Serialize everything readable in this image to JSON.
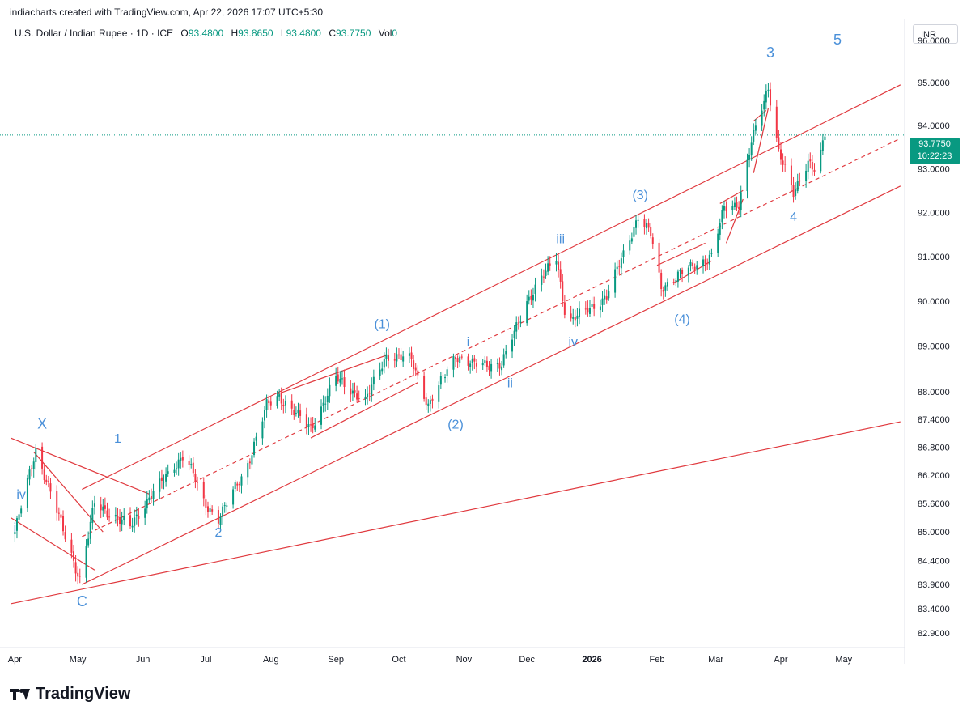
{
  "header": {
    "published": "indiacharts created with TradingView.com, Apr 22, 2026 17:07 UTC+5:30"
  },
  "legend": {
    "symbol": "U.S. Dollar / Indian Rupee · 1D · ICE",
    "open_label": "O",
    "open": "93.4800",
    "high_label": "H",
    "high": "93.8650",
    "low_label": "L",
    "low": "93.4800",
    "close_label": "C",
    "close": "93.7750",
    "vol_label": "Vol",
    "vol": "0"
  },
  "price_axis": {
    "currency": "INR"
  },
  "last_price": {
    "value": "93.7750",
    "countdown": "10:22:23"
  },
  "brand": {
    "name": "TradingView",
    "logo": "tradingview-logo-icon"
  },
  "colors": {
    "up": "#089981",
    "down": "#f23645",
    "annotation": "#4a90d9",
    "trendline": "#e0393e"
  },
  "chart_data": {
    "type": "candlestick",
    "title": "",
    "scale": "log",
    "ylim": [
      82.6,
      96.5
    ],
    "y_ticks": [
      "96.0000",
      "95.0000",
      "94.0000",
      "93.0000",
      "92.0000",
      "91.0000",
      "90.0000",
      "89.0000",
      "88.0000",
      "87.4000",
      "86.8000",
      "86.2000",
      "85.6000",
      "85.0000",
      "84.4000",
      "83.9000",
      "83.4000",
      "82.9000"
    ],
    "x_ticks": [
      "Apr",
      "May",
      "Jun",
      "Jul",
      "Aug",
      "Sep",
      "Oct",
      "Nov",
      "Dec",
      "2026",
      "Feb",
      "Mar",
      "Apr",
      "May"
    ],
    "x_ticks_bold": [
      "2026"
    ],
    "last_close": 93.775,
    "path": [
      [
        "2025-04-01",
        85.0
      ],
      [
        "2025-04-11",
        86.75
      ],
      [
        "2025-05-02",
        84.0
      ],
      [
        "2025-05-09",
        85.6
      ],
      [
        "2025-05-16",
        85.4
      ],
      [
        "2025-05-26",
        85.1
      ],
      [
        "2025-06-05",
        85.8
      ],
      [
        "2025-06-13",
        86.2
      ],
      [
        "2025-06-21",
        86.7
      ],
      [
        "2025-06-30",
        85.6
      ],
      [
        "2025-07-07",
        85.3
      ],
      [
        "2025-07-20",
        86.3
      ],
      [
        "2025-07-30",
        87.7
      ],
      [
        "2025-08-05",
        87.9
      ],
      [
        "2025-08-20",
        87.2
      ],
      [
        "2025-09-01",
        88.3
      ],
      [
        "2025-09-15",
        87.8
      ],
      [
        "2025-09-25",
        88.8
      ],
      [
        "2025-10-07",
        88.7
      ],
      [
        "2025-10-15",
        87.7
      ],
      [
        "2025-10-28",
        88.8
      ],
      [
        "2025-11-05",
        88.6
      ],
      [
        "2025-11-19",
        88.6
      ],
      [
        "2025-12-01",
        90.0
      ],
      [
        "2025-12-15",
        91.0
      ],
      [
        "2025-12-20",
        89.5
      ],
      [
        "2026-01-08",
        90.1
      ],
      [
        "2026-01-23",
        91.9
      ],
      [
        "2026-01-29",
        91.5
      ],
      [
        "2026-02-03",
        90.3
      ],
      [
        "2026-02-15",
        90.7
      ],
      [
        "2026-02-27",
        91.0
      ],
      [
        "2026-03-05",
        92.1
      ],
      [
        "2026-03-12",
        92.2
      ],
      [
        "2026-03-18",
        93.6
      ],
      [
        "2026-03-26",
        94.9
      ],
      [
        "2026-03-31",
        93.4
      ],
      [
        "2026-04-07",
        92.4
      ],
      [
        "2026-04-14",
        93.2
      ],
      [
        "2026-04-18",
        92.9
      ],
      [
        "2026-04-22",
        93.775
      ]
    ],
    "annotations": [
      {
        "label": "i",
        "date": "2025-04-01",
        "value": 85.0
      },
      {
        "label": "iv",
        "date": "2025-04-04",
        "value": 85.7
      },
      {
        "label": "X",
        "date": "2025-04-14",
        "value": 87.2
      },
      {
        "label": "C",
        "date": "2025-05-03",
        "value": 83.45
      },
      {
        "label": "1",
        "date": "2025-05-20",
        "value": 86.9
      },
      {
        "label": "2",
        "date": "2025-07-07",
        "value": 84.9
      },
      {
        "label": "(1)",
        "date": "2025-09-23",
        "value": 89.4
      },
      {
        "label": "(2)",
        "date": "2025-10-28",
        "value": 87.2
      },
      {
        "label": "i",
        "date": "2025-11-03",
        "value": 89.0
      },
      {
        "label": "ii",
        "date": "2025-11-23",
        "value": 88.1
      },
      {
        "label": "iii",
        "date": "2025-12-17",
        "value": 91.3
      },
      {
        "label": "iv",
        "date": "2025-12-23",
        "value": 89.0
      },
      {
        "label": "(3)",
        "date": "2026-01-24",
        "value": 92.3
      },
      {
        "label": "(4)",
        "date": "2026-02-13",
        "value": 89.5
      },
      {
        "label": "3",
        "date": "2026-03-27",
        "value": 95.6
      },
      {
        "label": "4",
        "date": "2026-04-07",
        "value": 91.8
      },
      {
        "label": "5",
        "date": "2026-04-28",
        "value": 95.9
      }
    ],
    "lines": [
      {
        "style": "solid",
        "from": [
          "2025-05-03",
          83.9
        ],
        "to": [
          "2026-05-28",
          92.6
        ]
      },
      {
        "style": "solid",
        "from": [
          "2025-05-03",
          85.9
        ],
        "to": [
          "2026-05-28",
          94.95
        ]
      },
      {
        "style": "dashed",
        "from": [
          "2025-05-03",
          84.9
        ],
        "to": [
          "2026-05-28",
          93.7
        ]
      },
      {
        "style": "solid",
        "from": [
          "2025-03-30",
          83.5
        ],
        "to": [
          "2026-05-28",
          87.35
        ]
      },
      {
        "style": "solid",
        "from": [
          "2025-03-30",
          87.0
        ],
        "to": [
          "2025-06-04",
          85.8
        ]
      },
      {
        "style": "solid",
        "from": [
          "2025-04-10",
          86.7
        ],
        "to": [
          "2025-05-13",
          85.0
        ]
      },
      {
        "style": "solid",
        "from": [
          "2025-03-30",
          85.3
        ],
        "to": [
          "2025-05-09",
          84.2
        ]
      },
      {
        "style": "solid",
        "from": [
          "2025-08-04",
          87.95
        ],
        "to": [
          "2025-09-25",
          88.8
        ]
      },
      {
        "style": "solid",
        "from": [
          "2025-08-20",
          87.0
        ],
        "to": [
          "2025-10-10",
          88.2
        ]
      },
      {
        "style": "solid",
        "from": [
          "2026-02-01",
          90.8
        ],
        "to": [
          "2026-02-24",
          91.3
        ]
      },
      {
        "style": "solid",
        "from": [
          "2026-02-09",
          90.4
        ],
        "to": [
          "2026-02-27",
          90.9
        ]
      },
      {
        "style": "solid",
        "from": [
          "2026-03-03",
          92.2
        ],
        "to": [
          "2026-03-14",
          92.5
        ]
      },
      {
        "style": "solid",
        "from": [
          "2026-03-06",
          91.3
        ],
        "to": [
          "2026-03-14",
          92.3
        ]
      },
      {
        "style": "solid",
        "from": [
          "2026-03-19",
          94.1
        ],
        "to": [
          "2026-03-25",
          94.35
        ]
      },
      {
        "style": "solid",
        "from": [
          "2026-03-19",
          92.9
        ],
        "to": [
          "2026-03-26",
          94.4
        ]
      }
    ]
  }
}
